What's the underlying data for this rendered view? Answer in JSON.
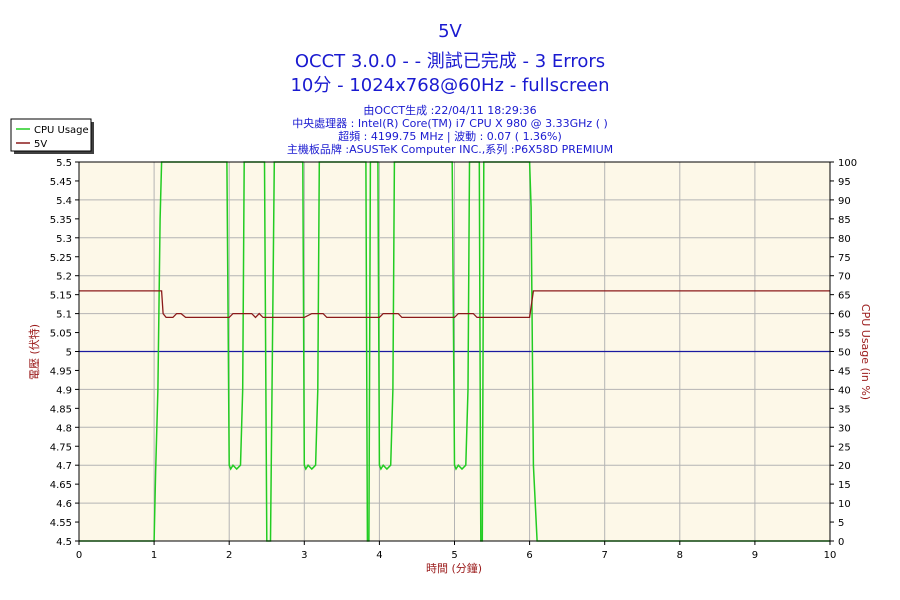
{
  "header": {
    "title": "5V",
    "line2": "OCCT 3.0.0 -  - 測試已完成 - 3 Errors",
    "line3": "10分 - 1024x768@60Hz - fullscreen"
  },
  "info": {
    "generated": "由OCCT生成 :22/04/11 18:29:36",
    "cpu": "中央處理器 : Intel(R) Core(TM) i7 CPU X 980 @ 3.33GHz (  )",
    "clock": "超頻 : 4199.75 MHz | 波動 : 0.07 ( 1.36%)",
    "board": "主機板品牌 :ASUSTeK Computer INC.,系列 :P6X58D PREMIUM"
  },
  "colors": {
    "background": "#fdf8e8",
    "grid": "#b4b4b4",
    "cpu": "#22cc22",
    "voltage": "#8b1a1a",
    "reference": "#1a1aa0",
    "axis_label": "#9b1c1c"
  },
  "chart_data": {
    "type": "line",
    "title": "5V",
    "xlabel": "時間 (分鐘)",
    "ylabel": "電壓 (伏特)",
    "y2label": "CPU Usage (in %)",
    "xlim": [
      0,
      10
    ],
    "ylim": [
      4.5,
      5.5
    ],
    "y2lim": [
      0,
      100
    ],
    "x_ticks": [
      "0",
      "1",
      "2",
      "3",
      "4",
      "5",
      "6",
      "7",
      "8",
      "9",
      "10"
    ],
    "y_ticks": [
      "4.5",
      "4.55",
      "4.6",
      "4.65",
      "4.7",
      "4.75",
      "4.8",
      "4.85",
      "4.9",
      "4.95",
      "5",
      "5.05",
      "5.1",
      "5.15",
      "5.2",
      "5.25",
      "5.3",
      "5.35",
      "5.4",
      "5.45",
      "5.5"
    ],
    "y2_ticks": [
      "0",
      "5",
      "10",
      "15",
      "20",
      "25",
      "30",
      "35",
      "40",
      "45",
      "50",
      "55",
      "60",
      "65",
      "70",
      "75",
      "80",
      "85",
      "90",
      "95",
      "100"
    ],
    "grid": true,
    "legend_position": "top-left",
    "reference_line": 5.0,
    "series": [
      {
        "name": "CPU Usage",
        "axis": "right",
        "x": [
          0,
          1.0,
          1.02,
          1.05,
          1.08,
          1.1,
          1.12,
          1.15,
          1.18,
          1.2,
          1.97,
          2.0,
          2.02,
          2.05,
          2.1,
          2.15,
          2.18,
          2.2,
          2.22,
          2.25,
          2.47,
          2.5,
          2.55,
          2.6,
          2.62,
          2.98,
          3.0,
          3.02,
          3.05,
          3.1,
          3.15,
          3.18,
          3.2,
          3.22,
          3.25,
          3.82,
          3.84,
          3.86,
          3.88,
          3.9,
          3.92,
          3.98,
          4.0,
          4.02,
          4.05,
          4.1,
          4.15,
          4.18,
          4.2,
          4.22,
          4.25,
          4.97,
          5.0,
          5.02,
          5.05,
          5.1,
          5.15,
          5.18,
          5.2,
          5.22,
          5.25,
          5.33,
          5.35,
          5.37,
          5.39,
          5.41,
          5.43,
          6.0,
          6.02,
          6.05,
          6.1,
          10
        ],
        "y": [
          0,
          0,
          18,
          40,
          85,
          100,
          100,
          100,
          100,
          100,
          100,
          20,
          19,
          20,
          19,
          20,
          40,
          100,
          100,
          100,
          100,
          0,
          0,
          100,
          100,
          100,
          20,
          19,
          20,
          19,
          20,
          40,
          100,
          100,
          100,
          100,
          0,
          0,
          100,
          100,
          100,
          100,
          20,
          19,
          20,
          19,
          20,
          40,
          100,
          100,
          100,
          100,
          20,
          19,
          20,
          19,
          20,
          40,
          100,
          100,
          100,
          100,
          0,
          0,
          100,
          100,
          100,
          100,
          88,
          20,
          0,
          0
        ]
      },
      {
        "name": "5V",
        "axis": "left",
        "x": [
          0,
          1.1,
          1.12,
          1.16,
          1.25,
          1.3,
          1.36,
          1.42,
          2.0,
          2.05,
          2.3,
          2.35,
          2.4,
          2.45,
          3.0,
          3.1,
          3.25,
          3.3,
          4.0,
          4.05,
          4.25,
          4.3,
          5.0,
          5.05,
          5.25,
          5.3,
          6.0,
          6.05,
          10
        ],
        "y": [
          5.16,
          5.16,
          5.1,
          5.09,
          5.09,
          5.1,
          5.1,
          5.09,
          5.09,
          5.1,
          5.1,
          5.09,
          5.1,
          5.09,
          5.09,
          5.1,
          5.1,
          5.09,
          5.09,
          5.1,
          5.1,
          5.09,
          5.09,
          5.1,
          5.1,
          5.09,
          5.09,
          5.16,
          5.16
        ]
      }
    ]
  }
}
